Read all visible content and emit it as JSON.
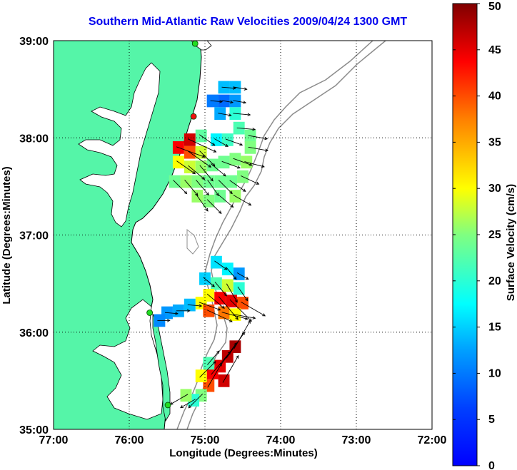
{
  "title": "Southern Mid-Atlantic Raw Velocities 2009/04/24 1300 GMT",
  "axes": {
    "xlabel": "Longitude (Degrees:Minutes)",
    "ylabel": "Latitude (Degrees:Minutes)",
    "x_ticks": [
      {
        "value": -77,
        "label": "77:00"
      },
      {
        "value": -76,
        "label": "76:00"
      },
      {
        "value": -75,
        "label": "75:00"
      },
      {
        "value": -74,
        "label": "74:00"
      },
      {
        "value": -73,
        "label": "73:00"
      },
      {
        "value": -72,
        "label": "72:00"
      }
    ],
    "y_ticks": [
      {
        "value": 35,
        "label": "35:00"
      },
      {
        "value": 36,
        "label": "36:00"
      },
      {
        "value": 37,
        "label": "37:00"
      },
      {
        "value": 38,
        "label": "38:00"
      },
      {
        "value": 39,
        "label": "39:00"
      }
    ],
    "xlim": [
      -77,
      -72
    ],
    "ylim": [
      35,
      39
    ],
    "grid": "dotted"
  },
  "colorbar": {
    "label": "Surface Velocity (cm/s)",
    "range": [
      0,
      50
    ],
    "ticks": [
      {
        "value": 0,
        "label": "0"
      },
      {
        "value": 5,
        "label": "5"
      },
      {
        "value": 10,
        "label": "10"
      },
      {
        "value": 15,
        "label": "15"
      },
      {
        "value": 20,
        "label": "20"
      },
      {
        "value": 25,
        "label": "25"
      },
      {
        "value": 30,
        "label": "30"
      },
      {
        "value": 35,
        "label": "35"
      },
      {
        "value": 40,
        "label": "40"
      },
      {
        "value": 45,
        "label": "45"
      },
      {
        "value": 50,
        "label": "50"
      }
    ],
    "colormap": "jet"
  },
  "colors": {
    "land": "#55f5a8",
    "coastline": "#000000",
    "bathymetry": "#8c8c8c",
    "station_marker": "#22dd22",
    "station_marker_red": "#ee1111",
    "title_color": "#0000ee"
  },
  "chart_data": {
    "type": "heatmap",
    "description_units": "lon/lat in degrees, speed in cm/s, direction as heading degrees (0=north, 90=east)",
    "stations": [
      {
        "lon": -75.13,
        "lat": 38.97,
        "color": "green"
      },
      {
        "lon": -75.15,
        "lat": 38.22,
        "color": "red"
      },
      {
        "lon": -75.73,
        "lat": 36.2,
        "color": "green"
      },
      {
        "lon": -75.49,
        "lat": 35.25,
        "color": "green"
      }
    ],
    "regions": [
      {
        "name": "delmarva",
        "cells": [
          [
            -74.75,
            38.52,
            14,
            95
          ],
          [
            -74.6,
            38.52,
            14,
            100
          ],
          [
            -74.9,
            38.38,
            10,
            95
          ],
          [
            -74.75,
            38.38,
            9,
            100
          ],
          [
            -74.6,
            38.38,
            12,
            100
          ],
          [
            -74.8,
            38.25,
            13,
            100
          ],
          [
            -74.6,
            38.25,
            20,
            95
          ],
          [
            -74.55,
            38.1,
            22,
            95
          ],
          [
            -74.4,
            38.02,
            24,
            100
          ],
          [
            -74.4,
            37.9,
            25,
            100
          ],
          [
            -74.7,
            37.98,
            21,
            110
          ],
          [
            -74.85,
            37.98,
            17,
            120
          ],
          [
            -75.05,
            38.02,
            23,
            125
          ],
          [
            -75.2,
            37.98,
            46,
            115
          ],
          [
            -75.35,
            37.9,
            44,
            110
          ],
          [
            -75.2,
            37.85,
            40,
            125
          ],
          [
            -75.05,
            37.85,
            28,
            135
          ],
          [
            -75.35,
            37.75,
            30,
            125
          ],
          [
            -75.2,
            37.7,
            28,
            130
          ],
          [
            -75.05,
            37.7,
            26,
            140
          ],
          [
            -74.9,
            37.72,
            24,
            130
          ],
          [
            -74.75,
            37.75,
            24,
            110
          ],
          [
            -74.6,
            37.78,
            25,
            110
          ],
          [
            -74.45,
            37.75,
            26,
            105
          ],
          [
            -75.4,
            37.55,
            24,
            135
          ],
          [
            -75.25,
            37.55,
            26,
            140
          ],
          [
            -75.1,
            37.55,
            25,
            140
          ],
          [
            -74.95,
            37.55,
            24,
            145
          ],
          [
            -74.8,
            37.55,
            24,
            135
          ],
          [
            -74.65,
            37.55,
            24,
            125
          ],
          [
            -74.5,
            37.6,
            25,
            115
          ],
          [
            -75.1,
            37.4,
            26,
            145
          ],
          [
            -74.95,
            37.35,
            25,
            135
          ],
          [
            -74.8,
            37.4,
            24,
            130
          ],
          [
            -74.6,
            37.4,
            26,
            120
          ]
        ]
      },
      {
        "name": "virginia-beach",
        "cells": [
          [
            -74.85,
            36.72,
            16,
            125
          ],
          [
            -74.7,
            36.65,
            17,
            140
          ],
          [
            -74.55,
            36.6,
            12,
            120
          ],
          [
            -75.0,
            36.55,
            15,
            130
          ],
          [
            -74.85,
            36.5,
            22,
            140
          ],
          [
            -74.7,
            36.48,
            28,
            150
          ],
          [
            -74.55,
            36.45,
            20,
            145
          ],
          [
            -74.95,
            36.38,
            30,
            130
          ],
          [
            -74.8,
            36.35,
            44,
            140
          ],
          [
            -74.65,
            36.32,
            45,
            135
          ],
          [
            -74.5,
            36.3,
            40,
            120
          ],
          [
            -75.05,
            36.3,
            30,
            110
          ],
          [
            -74.95,
            36.22,
            40,
            115
          ],
          [
            -74.75,
            36.2,
            38,
            105
          ],
          [
            -74.6,
            36.18,
            30,
            100
          ],
          [
            -75.2,
            36.28,
            14,
            95
          ],
          [
            -75.35,
            36.22,
            13,
            90
          ],
          [
            -75.5,
            36.2,
            12,
            95
          ],
          [
            -75.6,
            36.12,
            11,
            90
          ]
        ]
      },
      {
        "name": "hatteras",
        "cells": [
          [
            -74.6,
            35.85,
            48,
            30
          ],
          [
            -74.7,
            35.75,
            47,
            35
          ],
          [
            -74.8,
            35.65,
            45,
            35
          ],
          [
            -74.9,
            35.58,
            44,
            40
          ],
          [
            -74.75,
            35.5,
            46,
            30
          ],
          [
            -74.95,
            35.45,
            40,
            30
          ],
          [
            -75.05,
            35.55,
            30,
            45
          ],
          [
            -75.05,
            35.35,
            25,
            225
          ],
          [
            -75.15,
            35.3,
            20,
            240
          ],
          [
            -75.25,
            35.35,
            26,
            240
          ],
          [
            -74.95,
            35.68,
            22,
            40
          ]
        ]
      }
    ]
  }
}
